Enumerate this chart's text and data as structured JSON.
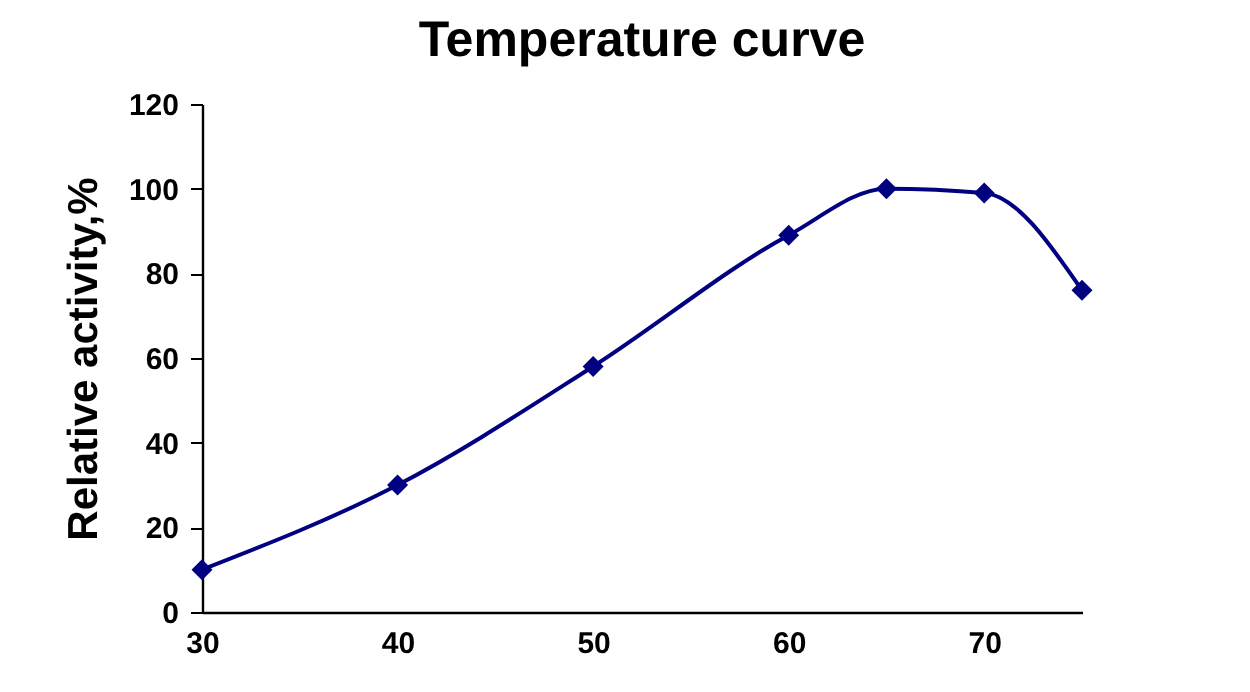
{
  "chart_data": {
    "type": "line",
    "title": "Temperature curve",
    "ylabel": "Relative activity,%",
    "x": [
      30,
      40,
      50,
      60,
      65,
      70,
      75
    ],
    "series": [
      {
        "color": "#000080",
        "values": [
          10,
          30,
          58,
          89,
          100,
          99,
          76
        ]
      }
    ],
    "xlim": [
      30,
      75
    ],
    "xticks": [
      30,
      40,
      50,
      60,
      70
    ],
    "ylim": [
      0,
      120
    ],
    "yticks": [
      0,
      20,
      40,
      60,
      80,
      100,
      120
    ],
    "grid": false,
    "marker": "diamond",
    "line_style": "solid"
  }
}
